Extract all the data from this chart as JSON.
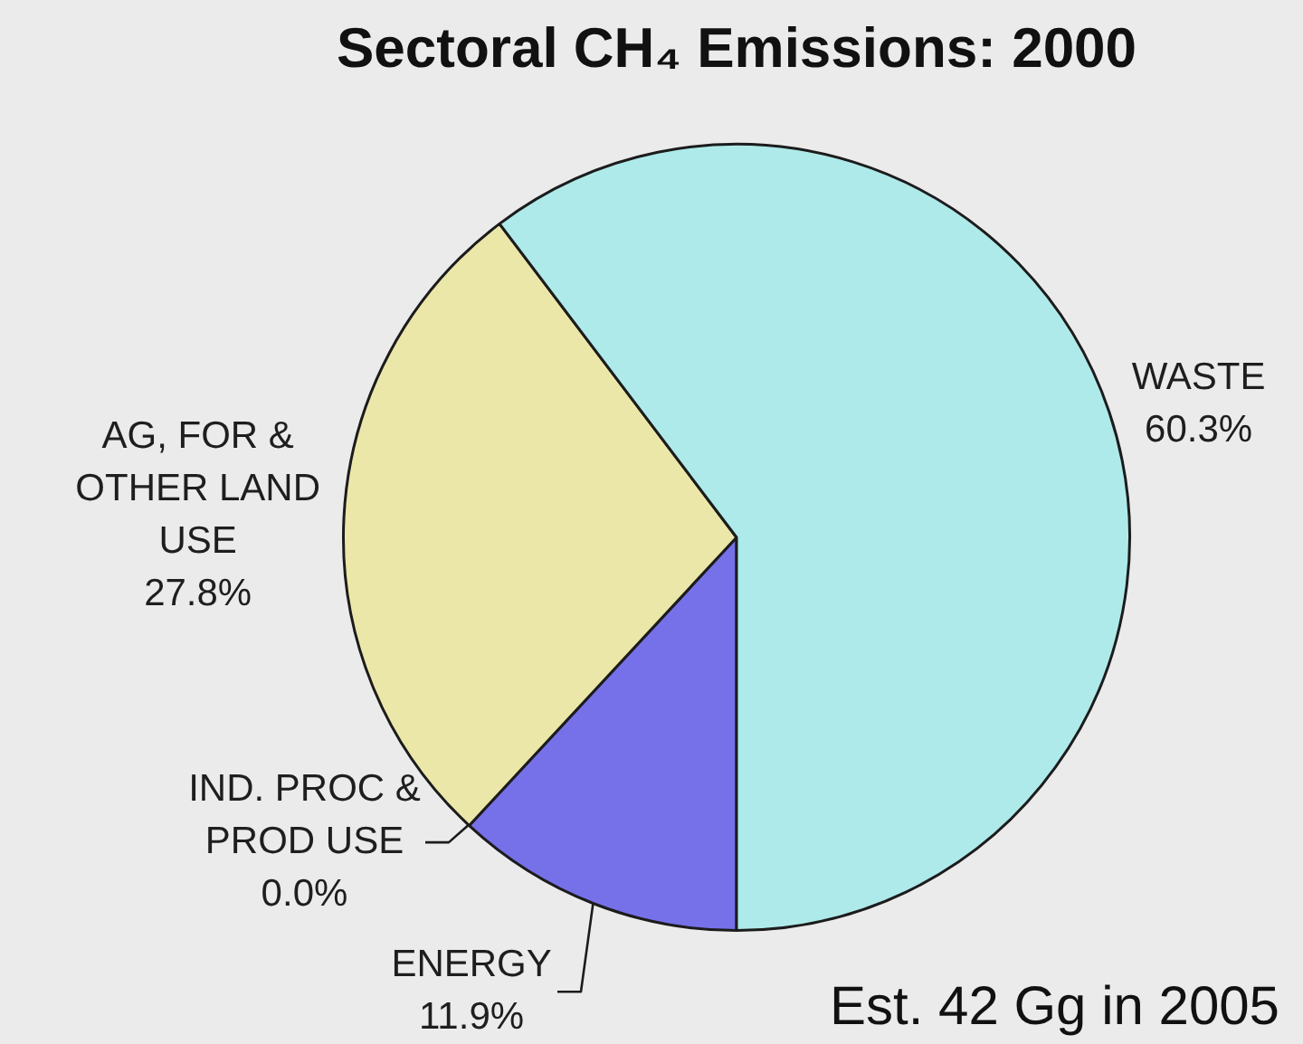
{
  "chart_data": {
    "type": "pie",
    "title": "Sectoral CH₄ Emissions: 2000",
    "categories": [
      "ENERGY",
      "IND. PROC & PROD USE",
      "AG, FOR & OTHER LAND USE",
      "WASTE"
    ],
    "values": [
      11.9,
      0.0,
      27.8,
      60.3
    ],
    "colors": [
      "#7671e9",
      "#e0a0a0",
      "#ebe7a9",
      "#afeaea"
    ],
    "value_labels": [
      "11.9%",
      "0.0%",
      "27.8%",
      "60.3%"
    ],
    "annotations": [
      "Est. 42 Gg in 2005"
    ]
  }
}
